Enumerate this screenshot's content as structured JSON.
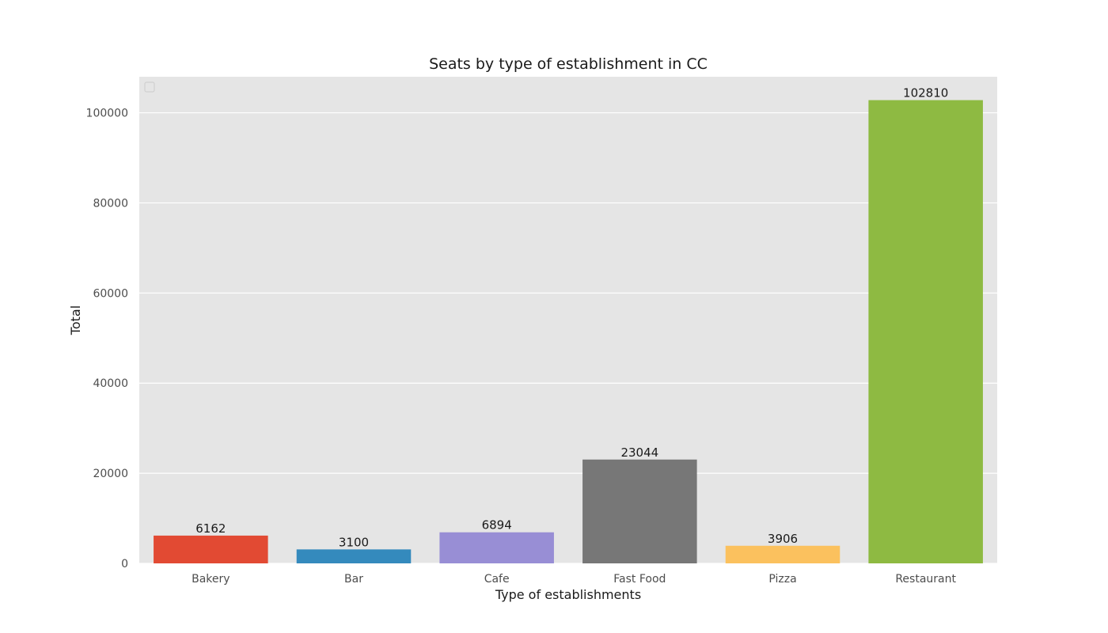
{
  "chart_data": {
    "type": "bar",
    "title": "Seats by type of establishment in CC",
    "xlabel": "Type of establishments",
    "ylabel": "Total",
    "categories": [
      "Bakery",
      "Bar",
      "Cafe",
      "Fast Food",
      "Pizza",
      "Restaurant"
    ],
    "values": [
      6162,
      3100,
      6894,
      23044,
      3906,
      102810
    ],
    "data_labels": [
      "6162",
      "3100",
      "6894",
      "23044",
      "3906",
      "102810"
    ],
    "colors": [
      "#E24A33",
      "#348ABD",
      "#988ED5",
      "#777777",
      "#FBC15E",
      "#8EBA42"
    ],
    "ylim": [
      0,
      108000
    ],
    "yticks": [
      0,
      20000,
      40000,
      60000,
      80000,
      100000
    ],
    "ytick_labels": [
      "0",
      "20000",
      "40000",
      "60000",
      "80000",
      "100000"
    ],
    "grid": true,
    "legend_placement": "top-left",
    "background_color": "#E5E5E5",
    "grid_color": "#FFFFFF"
  }
}
